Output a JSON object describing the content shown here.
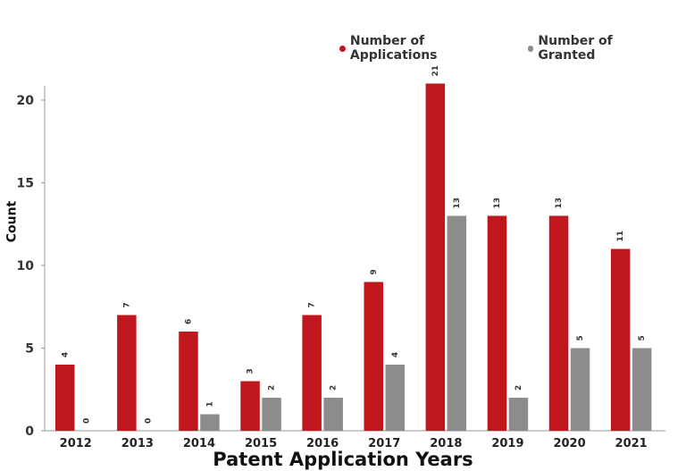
{
  "chart_data": {
    "type": "bar",
    "title": "",
    "xlabel": "Patent Application Years",
    "ylabel": "Count",
    "categories": [
      "2012",
      "2013",
      "2014",
      "2015",
      "2016",
      "2017",
      "2018",
      "2019",
      "2020",
      "2021"
    ],
    "series": [
      {
        "name": "Number of Applications",
        "color": "#C0161D",
        "values": [
          4,
          7,
          6,
          3,
          7,
          9,
          21,
          13,
          13,
          11
        ]
      },
      {
        "name": "Number of Granted",
        "color": "#8C8C8C",
        "values": [
          0,
          0,
          1,
          2,
          2,
          4,
          13,
          2,
          5,
          5
        ]
      }
    ],
    "ylim": [
      0,
      21
    ],
    "yticks": [
      0,
      5,
      10,
      15,
      20
    ],
    "grid": false,
    "legend_position": "top-right"
  }
}
